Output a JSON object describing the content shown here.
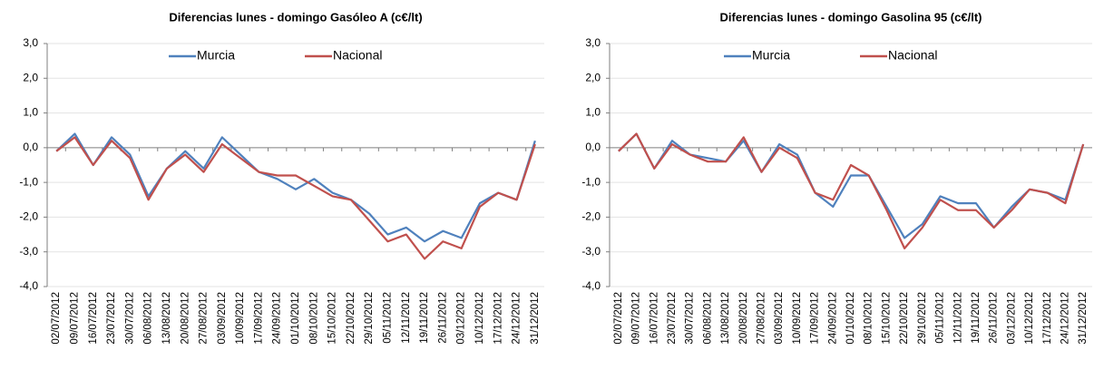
{
  "chart_data": [
    {
      "type": "line",
      "title": "Diferencias lunes - domingo Gasóleo A  (c€/lt)",
      "categories": [
        "02/07/2012",
        "09/07/2012",
        "16/07/2012",
        "23/07/2012",
        "30/07/2012",
        "06/08/2012",
        "13/08/2012",
        "20/08/2012",
        "27/08/2012",
        "03/09/2012",
        "10/09/2012",
        "17/09/2012",
        "24/09/2012",
        "01/10/2012",
        "08/10/2012",
        "15/10/2012",
        "22/10/2012",
        "29/10/2012",
        "05/11/2012",
        "12/11/2012",
        "19/11/2012",
        "26/11/2012",
        "03/12/2012",
        "10/12/2012",
        "17/12/2012",
        "24/12/2012",
        "31/12/2012"
      ],
      "series": [
        {
          "name": "Murcia",
          "color": "#4f81bd",
          "values": [
            -0.1,
            0.4,
            -0.5,
            0.3,
            -0.2,
            -1.4,
            -0.6,
            -0.1,
            -0.6,
            0.3,
            -0.2,
            -0.7,
            -0.9,
            -1.2,
            -0.9,
            -1.3,
            -1.5,
            -1.9,
            -2.5,
            -2.3,
            -2.7,
            -2.4,
            -2.6,
            -1.6,
            -1.3,
            -1.5,
            0.2
          ]
        },
        {
          "name": "Nacional",
          "color": "#c0504d",
          "values": [
            -0.1,
            0.3,
            -0.5,
            0.2,
            -0.3,
            -1.5,
            -0.6,
            -0.2,
            -0.7,
            0.1,
            -0.3,
            -0.7,
            -0.8,
            -0.8,
            -1.1,
            -1.4,
            -1.5,
            -2.1,
            -2.7,
            -2.5,
            -3.2,
            -2.7,
            -2.9,
            -1.7,
            -1.3,
            -1.5,
            0.1
          ]
        }
      ],
      "ylim": [
        -4,
        3
      ],
      "yticks": [
        {
          "value": -4,
          "label": "-4,0"
        },
        {
          "value": -3,
          "label": "-3,0"
        },
        {
          "value": -2,
          "label": "-2,0"
        },
        {
          "value": -1,
          "label": "-1,0"
        },
        {
          "value": 0,
          "label": "0,0"
        },
        {
          "value": 1,
          "label": "1,0"
        },
        {
          "value": 2,
          "label": "2,0"
        },
        {
          "value": 3,
          "label": "3,0"
        }
      ],
      "grid": true,
      "legend": "top"
    },
    {
      "type": "line",
      "title": "Diferencias lunes - domingo Gasolina 95  (c€/lt)",
      "categories": [
        "02/07/2012",
        "09/07/2012",
        "16/07/2012",
        "23/07/2012",
        "30/07/2012",
        "06/08/2012",
        "13/08/2012",
        "20/08/2012",
        "27/08/2012",
        "03/09/2012",
        "10/09/2012",
        "17/09/2012",
        "24/09/2012",
        "01/10/2012",
        "08/10/2012",
        "15/10/2012",
        "22/10/2012",
        "29/10/2012",
        "05/11/2012",
        "12/11/2012",
        "19/11/2012",
        "26/11/2012",
        "03/12/2012",
        "10/12/2012",
        "17/12/2012",
        "24/12/2012",
        "31/12/2012"
      ],
      "series": [
        {
          "name": "Murcia",
          "color": "#4f81bd",
          "values": [
            -0.1,
            0.4,
            -0.6,
            0.2,
            -0.2,
            -0.3,
            -0.4,
            0.2,
            -0.7,
            0.1,
            -0.2,
            -1.3,
            -1.7,
            -0.8,
            -0.8,
            -1.7,
            -2.6,
            -2.2,
            -1.4,
            -1.6,
            -1.6,
            -2.3,
            -1.7,
            -1.2,
            -1.3,
            -1.5,
            0.1
          ]
        },
        {
          "name": "Nacional",
          "color": "#c0504d",
          "values": [
            -0.1,
            0.4,
            -0.6,
            0.1,
            -0.2,
            -0.4,
            -0.4,
            0.3,
            -0.7,
            0.0,
            -0.3,
            -1.3,
            -1.5,
            -0.5,
            -0.8,
            -1.8,
            -2.9,
            -2.3,
            -1.5,
            -1.8,
            -1.8,
            -2.3,
            -1.8,
            -1.2,
            -1.3,
            -1.6,
            0.1
          ]
        }
      ],
      "ylim": [
        -4,
        3
      ],
      "yticks": [
        {
          "value": -4,
          "label": "-4,0"
        },
        {
          "value": -3,
          "label": "-3,0"
        },
        {
          "value": -2,
          "label": "-2,0"
        },
        {
          "value": -1,
          "label": "-1,0"
        },
        {
          "value": 0,
          "label": "0,0"
        },
        {
          "value": 1,
          "label": "1,0"
        },
        {
          "value": 2,
          "label": "2,0"
        },
        {
          "value": 3,
          "label": "3,0"
        }
      ],
      "grid": true,
      "legend": "top"
    }
  ]
}
